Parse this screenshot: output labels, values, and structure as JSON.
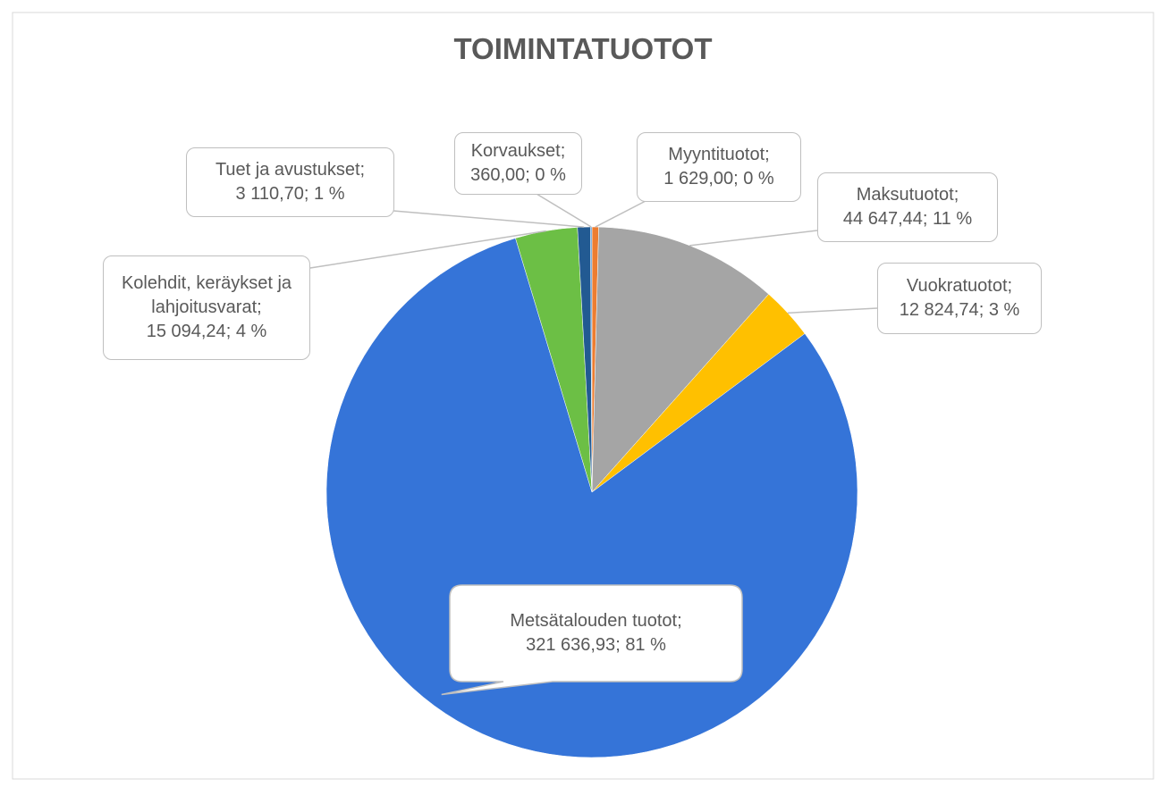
{
  "chart_data": {
    "type": "pie",
    "title": "TOIMINTATUOTOT",
    "categories": [
      "Myyntituotot",
      "Maksutuotot",
      "Vuokratuotot",
      "Metsätalouden tuotot",
      "Kolehdit, keräykset ja lahjoitusvarat",
      "Tuet ja avustukset",
      "Korvaukset"
    ],
    "values": [
      1629.0,
      44647.44,
      12824.74,
      321636.93,
      15094.24,
      3110.7,
      360.0
    ],
    "value_labels": [
      "1 629,00",
      "44 647,44",
      "12 824,74",
      "321 636,93",
      "15 094,24",
      "3 110,70",
      "360,00"
    ],
    "percents": [
      0,
      11,
      3,
      81,
      4,
      1,
      0
    ],
    "percent_labels": [
      "0 %",
      "11 %",
      "3 %",
      "81 %",
      "4 %",
      "1 %",
      "0 %"
    ],
    "separator": ";",
    "colors": [
      "#ed7d31",
      "#a5a5a5",
      "#ffc000",
      "#3574d8",
      "#6cbf45",
      "#225a92",
      "#5b9bd5"
    ]
  }
}
